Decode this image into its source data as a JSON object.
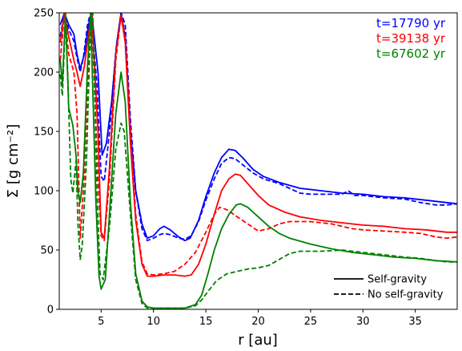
{
  "chart_data": {
    "type": "line",
    "xlabel": "r [au]",
    "ylabel": "Σ [g cm⁻²]",
    "xlim": [
      1,
      39
    ],
    "ylim": [
      0,
      250
    ],
    "x_ticks": [
      5,
      10,
      15,
      20,
      25,
      30,
      35
    ],
    "y_ticks": [
      0,
      50,
      100,
      150,
      200,
      250
    ],
    "grid": false,
    "time_labels": [
      {
        "text": "t=17790 yr",
        "color": "#0000ff"
      },
      {
        "text": "t=39138 yr",
        "color": "#ff0000"
      },
      {
        "text": "t=67602 yr",
        "color": "#008000"
      }
    ],
    "legend": {
      "placement": "lower-right",
      "entries": [
        {
          "label": "Self-gravity",
          "style": "solid"
        },
        {
          "label": "No self-gravity",
          "style": "dashed"
        }
      ]
    },
    "series": [
      {
        "time": "t=17790 yr",
        "gravity": "self",
        "color": "#0000ff",
        "style": "solid",
        "points": [
          [
            1.1,
            240
          ],
          [
            1.5,
            250
          ],
          [
            1.9,
            240
          ],
          [
            2.4,
            232
          ],
          [
            2.7,
            215
          ],
          [
            3.0,
            203
          ],
          [
            3.4,
            215
          ],
          [
            3.8,
            240
          ],
          [
            4.1,
            250
          ],
          [
            4.7,
            200
          ],
          [
            5.1,
            130
          ],
          [
            5.5,
            140
          ],
          [
            6.0,
            175
          ],
          [
            6.5,
            225
          ],
          [
            6.9,
            250
          ],
          [
            7.3,
            230
          ],
          [
            7.8,
            150
          ],
          [
            8.3,
            100
          ],
          [
            8.9,
            72
          ],
          [
            9.4,
            60
          ],
          [
            10.0,
            62
          ],
          [
            10.6,
            68
          ],
          [
            11.0,
            70
          ],
          [
            11.6,
            67
          ],
          [
            12.4,
            61
          ],
          [
            13.0,
            58
          ],
          [
            13.5,
            60
          ],
          [
            14.3,
            75
          ],
          [
            15.0,
            95
          ],
          [
            15.8,
            115
          ],
          [
            16.5,
            128
          ],
          [
            17.2,
            135
          ],
          [
            17.8,
            134
          ],
          [
            18.5,
            128
          ],
          [
            19.5,
            118
          ],
          [
            20.5,
            112
          ],
          [
            22,
            107
          ],
          [
            24,
            102
          ],
          [
            26,
            100
          ],
          [
            28,
            98
          ],
          [
            30,
            97
          ],
          [
            32,
            95
          ],
          [
            34,
            94
          ],
          [
            36,
            92
          ],
          [
            38,
            90
          ],
          [
            39,
            89
          ]
        ]
      },
      {
        "time": "t=17790 yr",
        "gravity": "none",
        "color": "#0000ff",
        "style": "dashed",
        "points": [
          [
            1.1,
            230
          ],
          [
            1.5,
            250
          ],
          [
            1.9,
            236
          ],
          [
            2.4,
            226
          ],
          [
            2.7,
            212
          ],
          [
            3.0,
            200
          ],
          [
            3.3,
            212
          ],
          [
            3.7,
            240
          ],
          [
            4.0,
            250
          ],
          [
            4.6,
            190
          ],
          [
            5.0,
            112
          ],
          [
            5.3,
            108
          ],
          [
            5.8,
            150
          ],
          [
            6.4,
            218
          ],
          [
            6.9,
            250
          ],
          [
            7.3,
            240
          ],
          [
            7.8,
            160
          ],
          [
            8.3,
            100
          ],
          [
            8.9,
            68
          ],
          [
            9.4,
            58
          ],
          [
            10.0,
            60
          ],
          [
            10.6,
            63
          ],
          [
            11.0,
            64
          ],
          [
            11.6,
            63
          ],
          [
            12.4,
            60
          ],
          [
            13.0,
            59
          ],
          [
            13.6,
            62
          ],
          [
            14.3,
            74
          ],
          [
            15.0,
            92
          ],
          [
            15.8,
            110
          ],
          [
            16.5,
            123
          ],
          [
            17.2,
            128
          ],
          [
            17.8,
            127
          ],
          [
            18.5,
            122
          ],
          [
            19.5,
            115
          ],
          [
            20.5,
            110
          ],
          [
            22,
            106
          ],
          [
            23,
            102
          ],
          [
            24,
            98
          ],
          [
            25,
            97
          ],
          [
            26,
            97
          ],
          [
            27,
            97
          ],
          [
            28,
            97
          ],
          [
            28.6,
            100
          ],
          [
            29.2,
            96
          ],
          [
            30,
            96
          ],
          [
            32,
            94
          ],
          [
            34,
            93
          ],
          [
            35.5,
            90
          ],
          [
            37,
            88
          ],
          [
            38,
            88
          ],
          [
            39,
            89
          ]
        ]
      },
      {
        "time": "t=39138 yr",
        "gravity": "self",
        "color": "#ff0000",
        "style": "solid",
        "points": [
          [
            1.1,
            225
          ],
          [
            1.5,
            250
          ],
          [
            1.9,
            230
          ],
          [
            2.4,
            210
          ],
          [
            2.7,
            200
          ],
          [
            3.0,
            188
          ],
          [
            3.4,
            205
          ],
          [
            3.8,
            232
          ],
          [
            4.1,
            250
          ],
          [
            4.7,
            150
          ],
          [
            5.0,
            65
          ],
          [
            5.3,
            60
          ],
          [
            5.8,
            120
          ],
          [
            6.4,
            215
          ],
          [
            6.9,
            248
          ],
          [
            7.3,
            225
          ],
          [
            7.8,
            140
          ],
          [
            8.3,
            75
          ],
          [
            8.9,
            38
          ],
          [
            9.4,
            28
          ],
          [
            10.0,
            28
          ],
          [
            11,
            29
          ],
          [
            12,
            29
          ],
          [
            13,
            28
          ],
          [
            13.6,
            29
          ],
          [
            14.3,
            38
          ],
          [
            15.0,
            55
          ],
          [
            15.8,
            80
          ],
          [
            16.5,
            100
          ],
          [
            17.2,
            110
          ],
          [
            17.8,
            114
          ],
          [
            18.3,
            113
          ],
          [
            19.0,
            106
          ],
          [
            20.0,
            96
          ],
          [
            21,
            88
          ],
          [
            22.5,
            82
          ],
          [
            24,
            78
          ],
          [
            26,
            75
          ],
          [
            28,
            73
          ],
          [
            30,
            71
          ],
          [
            32,
            70
          ],
          [
            34,
            68
          ],
          [
            36,
            67
          ],
          [
            38,
            65
          ],
          [
            39,
            65
          ]
        ]
      },
      {
        "time": "t=39138 yr",
        "gravity": "none",
        "color": "#ff0000",
        "style": "dashed",
        "points": [
          [
            1.1,
            210
          ],
          [
            1.5,
            250
          ],
          [
            1.9,
            215
          ],
          [
            2.4,
            200
          ],
          [
            2.7,
            165
          ],
          [
            3.0,
            60
          ],
          [
            3.4,
            115
          ],
          [
            3.8,
            215
          ],
          [
            4.1,
            250
          ],
          [
            4.7,
            110
          ],
          [
            5.0,
            62
          ],
          [
            5.3,
            58
          ],
          [
            5.8,
            110
          ],
          [
            6.4,
            210
          ],
          [
            6.9,
            248
          ],
          [
            7.3,
            230
          ],
          [
            7.8,
            150
          ],
          [
            8.3,
            80
          ],
          [
            8.9,
            40
          ],
          [
            9.4,
            30
          ],
          [
            10.0,
            29
          ],
          [
            11,
            30
          ],
          [
            12,
            32
          ],
          [
            13,
            38
          ],
          [
            14,
            48
          ],
          [
            15,
            65
          ],
          [
            15.8,
            80
          ],
          [
            16.3,
            86
          ],
          [
            17.0,
            84
          ],
          [
            18.0,
            78
          ],
          [
            19.0,
            72
          ],
          [
            20.0,
            66
          ],
          [
            21,
            68
          ],
          [
            22,
            72
          ],
          [
            23,
            74
          ],
          [
            24,
            74
          ],
          [
            25,
            74
          ],
          [
            26,
            73
          ],
          [
            27,
            72
          ],
          [
            28,
            70
          ],
          [
            29,
            68
          ],
          [
            30,
            67
          ],
          [
            32,
            66
          ],
          [
            34,
            65
          ],
          [
            35.5,
            64
          ],
          [
            37,
            61
          ],
          [
            38,
            60
          ],
          [
            39,
            61
          ]
        ]
      },
      {
        "time": "t=67602 yr",
        "gravity": "self",
        "color": "#008000",
        "style": "solid",
        "points": [
          [
            1.1,
            210
          ],
          [
            1.3,
            190
          ],
          [
            1.6,
            250
          ],
          [
            1.9,
            170
          ],
          [
            2.3,
            155
          ],
          [
            2.6,
            130
          ],
          [
            2.8,
            98
          ],
          [
            3.0,
            90
          ],
          [
            3.3,
            115
          ],
          [
            3.7,
            205
          ],
          [
            4.0,
            250
          ],
          [
            4.5,
            90
          ],
          [
            4.8,
            28
          ],
          [
            5.0,
            17
          ],
          [
            5.4,
            25
          ],
          [
            5.9,
            95
          ],
          [
            6.4,
            165
          ],
          [
            6.9,
            200
          ],
          [
            7.3,
            175
          ],
          [
            7.8,
            90
          ],
          [
            8.3,
            30
          ],
          [
            8.9,
            7
          ],
          [
            9.4,
            2
          ],
          [
            10,
            1
          ],
          [
            11,
            1
          ],
          [
            12,
            1
          ],
          [
            13,
            1
          ],
          [
            14,
            4
          ],
          [
            14.6,
            12
          ],
          [
            15.2,
            30
          ],
          [
            15.8,
            50
          ],
          [
            16.5,
            68
          ],
          [
            17.2,
            80
          ],
          [
            17.9,
            88
          ],
          [
            18.3,
            89
          ],
          [
            19.0,
            86
          ],
          [
            20.0,
            78
          ],
          [
            21,
            70
          ],
          [
            22,
            64
          ],
          [
            23,
            60
          ],
          [
            25,
            55
          ],
          [
            27,
            51
          ],
          [
            29,
            48
          ],
          [
            31,
            46
          ],
          [
            33,
            44
          ],
          [
            35,
            43
          ],
          [
            37,
            41
          ],
          [
            39,
            40
          ]
        ]
      },
      {
        "time": "t=67602 yr",
        "gravity": "none",
        "color": "#008000",
        "style": "dashed",
        "points": [
          [
            1.1,
            198
          ],
          [
            1.3,
            180
          ],
          [
            1.6,
            245
          ],
          [
            1.8,
            200
          ],
          [
            2.1,
            110
          ],
          [
            2.3,
            98
          ],
          [
            2.6,
            125
          ],
          [
            2.8,
            70
          ],
          [
            3.0,
            42
          ],
          [
            3.2,
            55
          ],
          [
            3.6,
            125
          ],
          [
            3.9,
            215
          ],
          [
            4.2,
            250
          ],
          [
            4.6,
            100
          ],
          [
            4.9,
            30
          ],
          [
            5.2,
            25
          ],
          [
            5.8,
            70
          ],
          [
            6.4,
            135
          ],
          [
            6.9,
            157
          ],
          [
            7.2,
            150
          ],
          [
            7.8,
            80
          ],
          [
            8.3,
            25
          ],
          [
            8.9,
            5
          ],
          [
            9.4,
            1
          ],
          [
            10,
            1
          ],
          [
            11,
            1
          ],
          [
            12,
            1
          ],
          [
            13,
            1
          ],
          [
            14,
            3
          ],
          [
            14.6,
            8
          ],
          [
            15.2,
            15
          ],
          [
            16.0,
            24
          ],
          [
            17.0,
            30
          ],
          [
            18.0,
            32
          ],
          [
            19.0,
            34
          ],
          [
            20.0,
            35
          ],
          [
            21,
            37
          ],
          [
            22,
            42
          ],
          [
            23,
            47
          ],
          [
            24,
            49
          ],
          [
            25,
            49
          ],
          [
            26,
            49
          ],
          [
            28,
            50
          ],
          [
            30,
            48
          ],
          [
            32,
            46
          ],
          [
            34,
            44
          ],
          [
            35.5,
            43
          ],
          [
            37,
            41
          ],
          [
            38,
            40
          ],
          [
            39,
            40
          ]
        ]
      }
    ]
  }
}
